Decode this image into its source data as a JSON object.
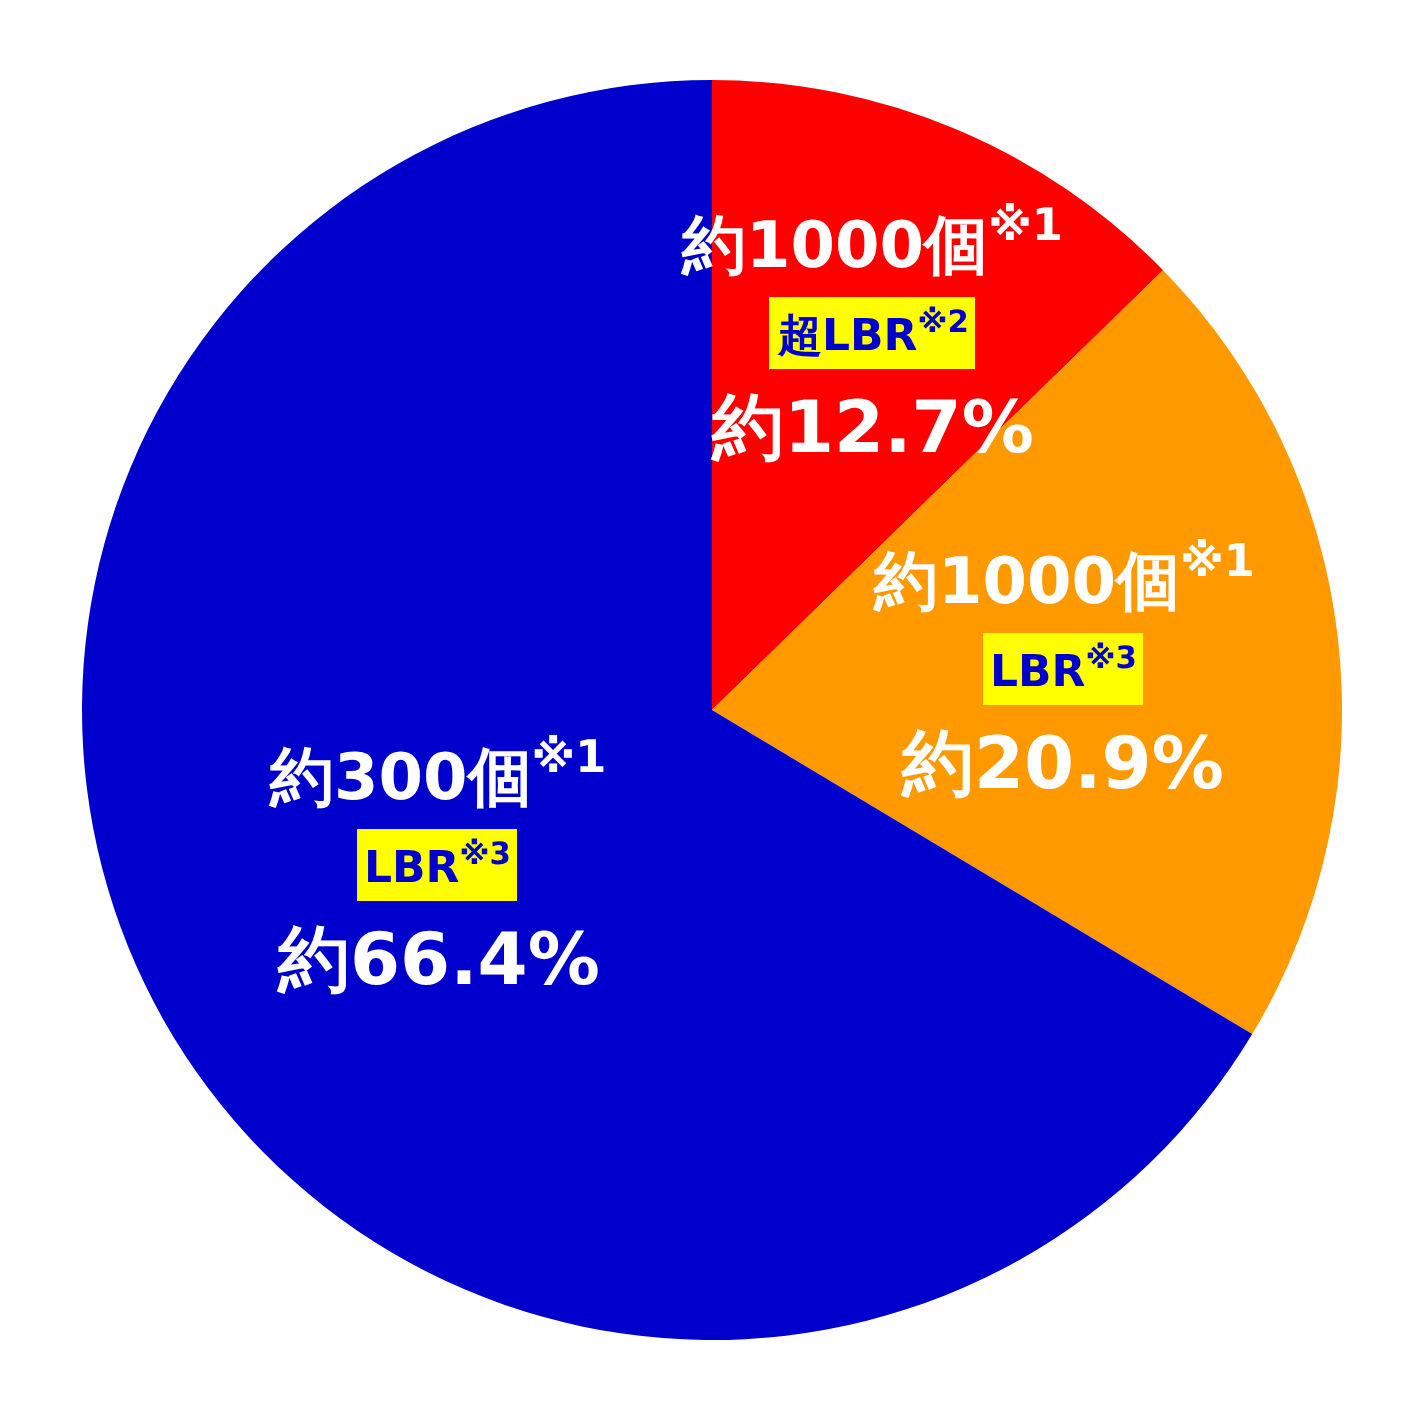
{
  "chart_data": {
    "type": "pie",
    "categories": [
      "約1000個$^{※1}$\n超LBR$^{※2}$",
      "約1000個$^{※1}$\nLBR$^{※3}$",
      "約300個$^{※1}$\nLBR$^{※3}$"
    ],
    "values": [
      12.7,
      20.9,
      66.4
    ],
    "value_labels": [
      "約12.7%",
      "約20.9%",
      "約66.4%"
    ],
    "colors": [
      "#ff0000",
      "#ff9900",
      "#0000cc"
    ],
    "legend": false
  }
}
